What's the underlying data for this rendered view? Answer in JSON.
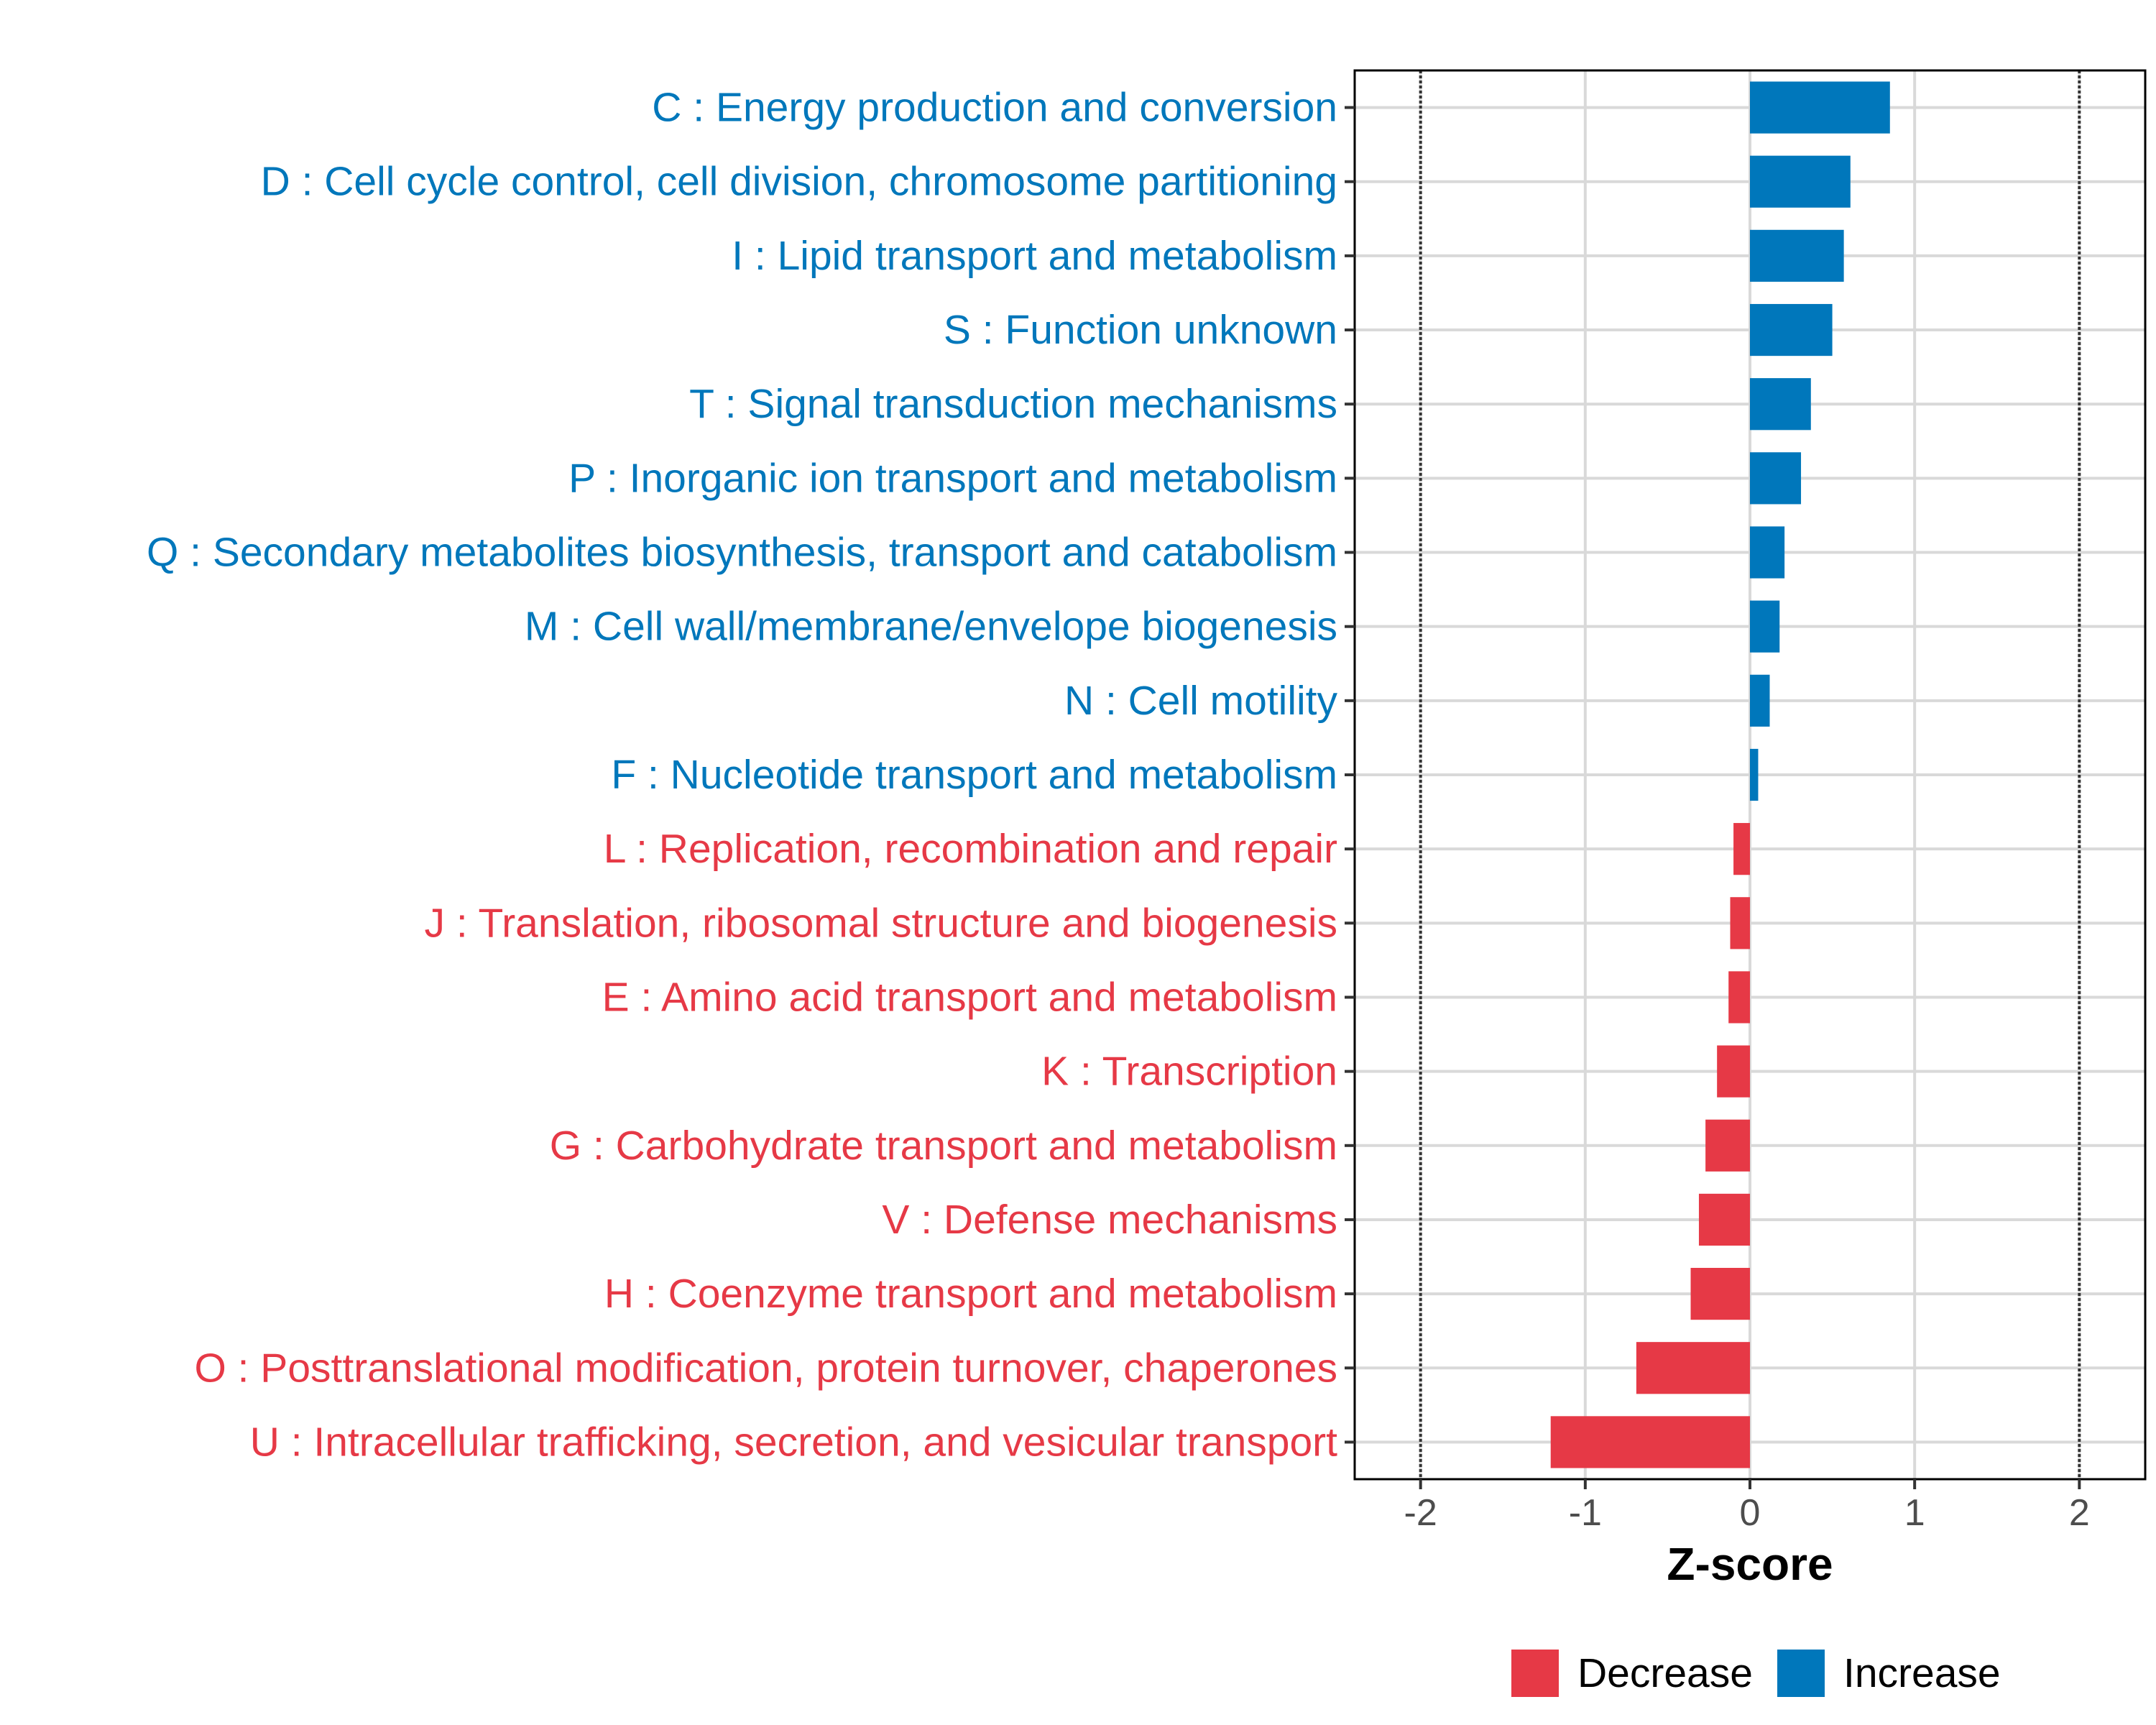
{
  "chart_data": {
    "type": "bar",
    "orientation": "horizontal",
    "title": "",
    "xlabel": "Z-score",
    "ylabel": "",
    "xlim": [
      -2.4,
      2.4
    ],
    "xticks": [
      -2,
      -1,
      0,
      1,
      2
    ],
    "xtick_labels": [
      "-2",
      "-1",
      "0",
      "1",
      "2"
    ],
    "reference_lines": [
      -2,
      2
    ],
    "grid": true,
    "legend_position": "bottom",
    "colors": {
      "Decrease": "#e63946",
      "Increase": "#0077bb"
    },
    "categories": [
      "C : Energy production and conversion",
      "D : Cell cycle control, cell division, chromosome partitioning",
      "I : Lipid transport and metabolism",
      "S : Function unknown",
      "T : Signal transduction mechanisms",
      "P : Inorganic ion transport and metabolism",
      "Q : Secondary metabolites biosynthesis, transport and catabolism",
      "M : Cell wall/membrane/envelope biogenesis",
      "N : Cell motility",
      "F : Nucleotide transport and metabolism",
      "L : Replication, recombination and repair",
      "J : Translation, ribosomal structure and biogenesis",
      "E : Amino acid transport and metabolism",
      "K : Transcription",
      "G : Carbohydrate transport and metabolism",
      "V : Defense mechanisms",
      "H : Coenzyme transport and metabolism",
      "O : Posttranslational modification, protein turnover, chaperones",
      "U : Intracellular trafficking, secretion, and vesicular transport"
    ],
    "values": [
      0.85,
      0.61,
      0.57,
      0.5,
      0.37,
      0.31,
      0.21,
      0.18,
      0.12,
      0.05,
      -0.1,
      -0.12,
      -0.13,
      -0.2,
      -0.27,
      -0.31,
      -0.36,
      -0.69,
      -1.21
    ],
    "groups": [
      "Increase",
      "Increase",
      "Increase",
      "Increase",
      "Increase",
      "Increase",
      "Increase",
      "Increase",
      "Increase",
      "Increase",
      "Decrease",
      "Decrease",
      "Decrease",
      "Decrease",
      "Decrease",
      "Decrease",
      "Decrease",
      "Decrease",
      "Decrease"
    ],
    "legend": [
      {
        "name": "Decrease",
        "label": "Decrease"
      },
      {
        "name": "Increase",
        "label": "Increase"
      }
    ]
  }
}
